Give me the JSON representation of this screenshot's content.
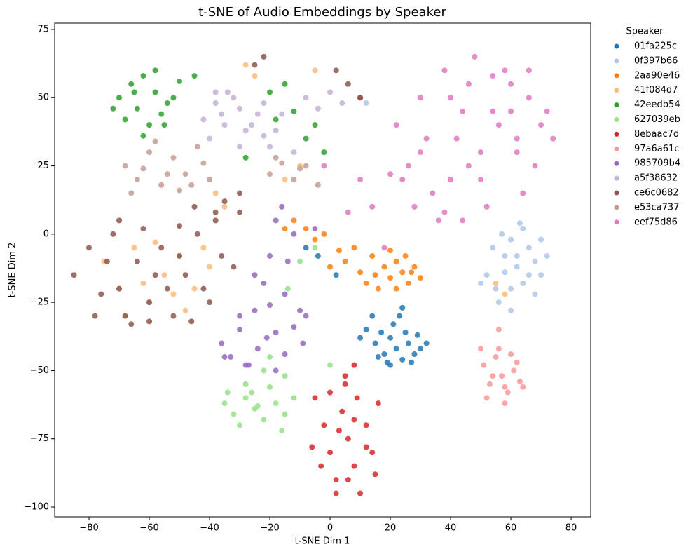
{
  "chart_data": {
    "type": "scatter",
    "title": "t-SNE of Audio Embeddings by Speaker",
    "x_label": "t-SNE Dim 1",
    "y_label": "t-SNE Dim 2",
    "legend_title": "Speaker",
    "legend": "outside-right",
    "xlim": [
      -91.4,
      86.5
    ],
    "ylim": [
      -103.6,
      77.3
    ],
    "xticks": [
      {
        "value": -80,
        "label": "−80"
      },
      {
        "value": -60,
        "label": "−60"
      },
      {
        "value": -40,
        "label": "−40"
      },
      {
        "value": -20,
        "label": "−20"
      },
      0,
      20,
      40,
      60,
      80
    ],
    "yticks": [
      {
        "value": -100,
        "label": "−100"
      },
      {
        "value": -75,
        "label": "−75"
      },
      {
        "value": -50,
        "label": "−50"
      },
      {
        "value": -25,
        "label": "−25"
      },
      0,
      25,
      50,
      75
    ],
    "series": [
      {
        "name": "01fa225c",
        "color": "#1f77b4",
        "x": [
          12,
          15,
          18,
          20,
          22,
          24,
          26,
          28,
          30,
          32,
          14,
          17,
          21,
          25,
          27,
          19,
          23,
          16,
          29,
          10,
          -8,
          -4,
          2,
          24,
          20
        ],
        "values": [
          -35,
          -40,
          -44,
          -38,
          -42,
          -46,
          -40,
          -44,
          -42,
          -40,
          -30,
          -36,
          -33,
          -36,
          -47,
          -47,
          -30,
          -45,
          -37,
          -38,
          -5,
          -8,
          -15,
          -27,
          -48
        ]
      },
      {
        "name": "0f397b66",
        "color": "#aec7e8",
        "x": [
          52,
          55,
          58,
          60,
          62,
          64,
          66,
          68,
          70,
          72,
          56,
          60,
          64,
          68,
          54,
          58,
          62,
          66,
          50,
          60,
          63,
          57,
          70,
          12
        ],
        "values": [
          -15,
          -20,
          -8,
          -2,
          -12,
          -18,
          -5,
          -10,
          -15,
          -8,
          -25,
          -28,
          2,
          -22,
          -5,
          -14,
          -8,
          -15,
          -18,
          -20,
          4,
          0,
          -2,
          48
        ]
      },
      {
        "name": "2aa90e46",
        "color": "#ff7f0e",
        "x": [
          5,
          10,
          14,
          18,
          20,
          22,
          24,
          26,
          28,
          30,
          12,
          16,
          20,
          25,
          8,
          15,
          22,
          27,
          -12,
          -8,
          -5,
          -15,
          -2,
          0,
          3
        ],
        "values": [
          -10,
          -14,
          -8,
          -12,
          -16,
          -10,
          -14,
          -18,
          -12,
          -16,
          -18,
          -20,
          -6,
          -8,
          -5,
          -15,
          -20,
          -14,
          5,
          2,
          -2,
          2,
          0,
          -12,
          -6
        ]
      },
      {
        "name": "41f084d7",
        "color": "#ffbb78",
        "x": [
          -75,
          -70,
          -65,
          -60,
          -55,
          -50,
          -45,
          -40,
          -68,
          -58,
          -48,
          -42,
          -62,
          -52,
          -28,
          -25,
          -5,
          -10,
          -35,
          -15,
          58,
          55,
          -38
        ],
        "values": [
          -10,
          -20,
          -5,
          -25,
          -15,
          -8,
          -20,
          -12,
          -30,
          -3,
          -28,
          -5,
          -18,
          -22,
          62,
          58,
          60,
          25,
          10,
          20,
          -22,
          -18,
          15
        ]
      },
      {
        "name": "42eedb54",
        "color": "#2ca02c",
        "x": [
          -70,
          -66,
          -62,
          -58,
          -54,
          -50,
          -68,
          -64,
          -60,
          -56,
          -52,
          -72,
          -62,
          -58,
          -65,
          -55,
          -20,
          -12,
          -8,
          -5,
          -28,
          -15,
          -18,
          -45,
          -2
        ],
        "values": [
          50,
          55,
          58,
          52,
          48,
          56,
          42,
          46,
          40,
          44,
          50,
          46,
          36,
          60,
          52,
          40,
          52,
          45,
          35,
          40,
          28,
          55,
          42,
          58,
          30
        ]
      },
      {
        "name": "627039eb",
        "color": "#98df8a",
        "x": [
          -35,
          -32,
          -28,
          -25,
          -22,
          -18,
          -15,
          -12,
          -30,
          -26,
          -20,
          -16,
          -24,
          -34,
          -20,
          -14,
          -10,
          -22,
          -5,
          -15,
          0,
          -28
        ],
        "values": [
          -62,
          -66,
          -60,
          -64,
          -68,
          -62,
          -66,
          -60,
          -70,
          -58,
          -56,
          -72,
          -63,
          -58,
          -45,
          -20,
          -10,
          -50,
          -5,
          -52,
          -48,
          -55
        ]
      },
      {
        "name": "8ebaac7d",
        "color": "#d62728",
        "x": [
          -5,
          -2,
          0,
          2,
          4,
          6,
          8,
          10,
          12,
          14,
          16,
          -3,
          0,
          3,
          6,
          9,
          12,
          15,
          5,
          2,
          8,
          -6,
          5,
          10,
          8
        ],
        "values": [
          -60,
          -70,
          -80,
          -90,
          -65,
          -75,
          -85,
          -95,
          -70,
          -80,
          -62,
          -85,
          -58,
          -72,
          -90,
          -60,
          -78,
          -88,
          -55,
          -95,
          -68,
          -78,
          -52,
          50,
          -48
        ]
      },
      {
        "name": "97a6a61c",
        "color": "#ff9896",
        "x": [
          51,
          53,
          55,
          57,
          59,
          61,
          63,
          52,
          56,
          60,
          64,
          54,
          58,
          62,
          50,
          56,
          58
        ],
        "values": [
          -48,
          -55,
          -45,
          -52,
          -58,
          -50,
          -54,
          -60,
          -42,
          -44,
          -56,
          -52,
          -62,
          -47,
          -42,
          -35,
          -56
        ]
      },
      {
        "name": "985709b4",
        "color": "#9467bd",
        "x": [
          -36,
          -33,
          -30,
          -27,
          -24,
          -21,
          -18,
          -15,
          -12,
          -9,
          -30,
          -25,
          -20,
          -15,
          -10,
          -28,
          -18,
          -22,
          -14,
          -18,
          -20,
          -16,
          -12,
          -25,
          -8,
          -35,
          -5
        ],
        "values": [
          -40,
          -45,
          -35,
          -48,
          -42,
          -38,
          -50,
          -44,
          -34,
          -40,
          -30,
          -28,
          -26,
          -22,
          -28,
          -48,
          -36,
          -18,
          -10,
          5,
          -8,
          10,
          0,
          -15,
          -30,
          -45,
          2
        ]
      },
      {
        "name": "a5f38632",
        "color": "#c5b0d5",
        "x": [
          -42,
          -38,
          -34,
          -30,
          -26,
          -22,
          -18,
          -40,
          -36,
          -32,
          -28,
          -24,
          -20,
          -16,
          -38,
          -30,
          -22,
          -8,
          -4,
          0,
          4,
          -12,
          -35
        ],
        "values": [
          42,
          48,
          52,
          46,
          40,
          36,
          38,
          35,
          44,
          50,
          38,
          44,
          32,
          44,
          52,
          32,
          48,
          50,
          46,
          52,
          48,
          30,
          40
        ]
      },
      {
        "name": "ce6c0682",
        "color": "#8c564b",
        "x": [
          -85,
          -80,
          -76,
          -72,
          -68,
          -64,
          -60,
          -56,
          -52,
          -48,
          -44,
          -40,
          -36,
          -32,
          -78,
          -70,
          -62,
          -54,
          -46,
          -38,
          -74,
          -66,
          -58,
          -50,
          -42,
          -70,
          -60,
          -50,
          -35,
          -38,
          -30,
          -45,
          -25,
          -22,
          2,
          6,
          10,
          -30
        ],
        "values": [
          -15,
          -5,
          -22,
          0,
          -30,
          -10,
          -25,
          -5,
          -30,
          -15,
          0,
          -25,
          -8,
          -12,
          -30,
          -20,
          2,
          -20,
          -32,
          5,
          -10,
          -33,
          -15,
          -8,
          -20,
          5,
          -32,
          3,
          12,
          8,
          15,
          10,
          62,
          65,
          60,
          55,
          50,
          8
        ]
      },
      {
        "name": "e53ca737",
        "color": "#c49c94",
        "x": [
          -68,
          -64,
          -60,
          -56,
          -52,
          -48,
          -44,
          -40,
          -66,
          -58,
          -50,
          -42,
          -62,
          -54,
          -46,
          -20,
          -16,
          -12,
          -8,
          -4,
          -18,
          -10
        ],
        "values": [
          25,
          20,
          30,
          18,
          28,
          22,
          32,
          20,
          15,
          34,
          16,
          26,
          24,
          22,
          18,
          22,
          26,
          20,
          25,
          18,
          28,
          24
        ]
      },
      {
        "name": "eef75d86",
        "color": "#e377c2",
        "x": [
          22,
          26,
          30,
          34,
          38,
          42,
          46,
          50,
          54,
          58,
          62,
          66,
          70,
          74,
          28,
          36,
          44,
          52,
          60,
          68,
          32,
          40,
          48,
          56,
          64,
          72,
          24,
          30,
          40,
          50,
          60,
          38,
          46,
          54,
          62,
          10,
          14,
          6,
          18,
          20,
          44,
          66,
          -2
        ],
        "values": [
          40,
          25,
          50,
          15,
          60,
          35,
          55,
          20,
          45,
          60,
          30,
          50,
          40,
          35,
          10,
          5,
          45,
          10,
          55,
          25,
          35,
          20,
          65,
          40,
          15,
          45,
          20,
          30,
          50,
          30,
          45,
          8,
          25,
          58,
          35,
          20,
          10,
          8,
          -5,
          22,
          5,
          60,
          25
        ]
      }
    ]
  }
}
